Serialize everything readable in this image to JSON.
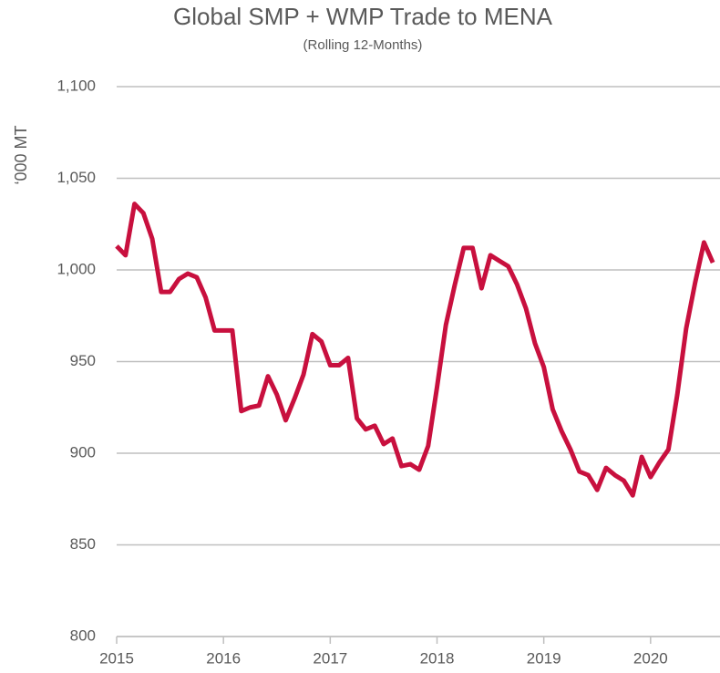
{
  "chart_data": {
    "type": "line",
    "title": "Global SMP + WMP Trade to MENA",
    "subtitle": "(Rolling  12-Months)",
    "y_label": "‘000 MT",
    "xlim": [
      2015,
      2020.65
    ],
    "xticks": [
      2015,
      2016,
      2017,
      2018,
      2019,
      2020
    ],
    "ylim": [
      800,
      1100
    ],
    "yticks": [
      800,
      850,
      900,
      950,
      {
        "value": 1000,
        "label": "1,000"
      },
      {
        "value": 1050,
        "label": "1,050"
      },
      {
        "value": 1100,
        "label": "1,100"
      }
    ],
    "grid": true,
    "x": [
      2015.0,
      2015.083,
      2015.167,
      2015.25,
      2015.333,
      2015.417,
      2015.5,
      2015.583,
      2015.667,
      2015.75,
      2015.833,
      2015.917,
      2016.0,
      2016.083,
      2016.167,
      2016.25,
      2016.333,
      2016.417,
      2016.5,
      2016.583,
      2016.667,
      2016.75,
      2016.833,
      2016.917,
      2017.0,
      2017.083,
      2017.167,
      2017.25,
      2017.333,
      2017.417,
      2017.5,
      2017.583,
      2017.667,
      2017.75,
      2017.833,
      2017.917,
      2018.0,
      2018.083,
      2018.167,
      2018.25,
      2018.333,
      2018.417,
      2018.5,
      2018.583,
      2018.667,
      2018.75,
      2018.833,
      2018.917,
      2019.0,
      2019.083,
      2019.167,
      2019.25,
      2019.333,
      2019.417,
      2019.5,
      2019.583,
      2019.667,
      2019.75,
      2019.833,
      2019.917,
      2020.0,
      2020.083,
      2020.167,
      2020.25,
      2020.333,
      2020.417,
      2020.5,
      2020.583
    ],
    "series": [
      {
        "name": "SMP + WMP",
        "color": "#c8103e",
        "values": [
          1013,
          1008,
          1036,
          1031,
          1017,
          988,
          988,
          995,
          998,
          996,
          985,
          967,
          967,
          967,
          923,
          925,
          926,
          942,
          932,
          918,
          930,
          943,
          965,
          961,
          948,
          948,
          952,
          919,
          913,
          915,
          905,
          908,
          893,
          894,
          891,
          904,
          936,
          970,
          992,
          1012,
          1012,
          990,
          1008,
          1005,
          1002,
          992,
          979,
          960,
          947,
          924,
          912,
          902,
          890,
          888,
          880,
          892,
          888,
          885,
          877,
          898,
          887,
          895,
          902,
          932,
          968,
          993,
          1015,
          1004
        ]
      }
    ]
  }
}
